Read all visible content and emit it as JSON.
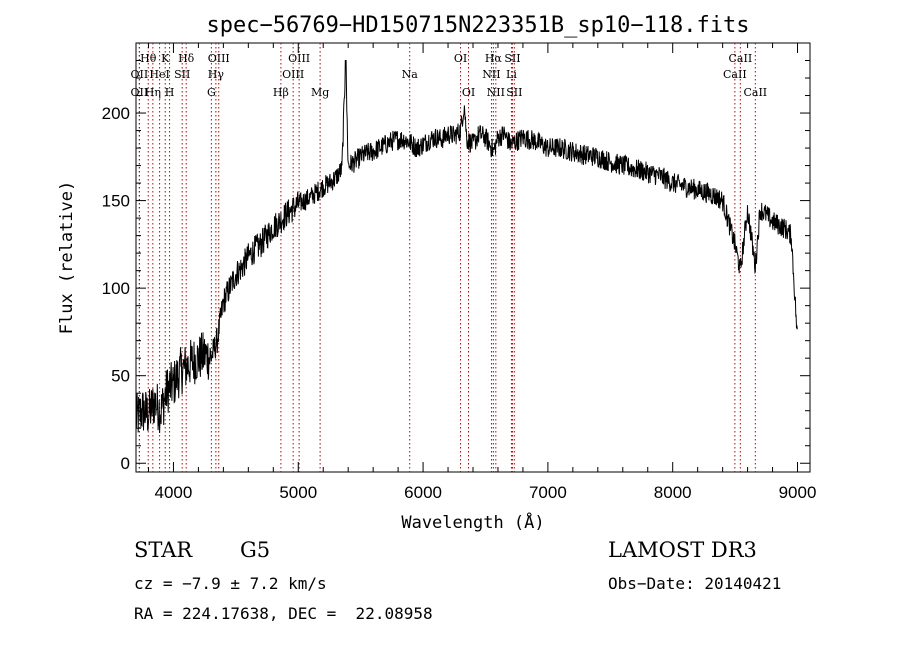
{
  "chart_data": {
    "type": "line",
    "title": "spec−56769−HD150715N223351B_sp10−118.fits",
    "xlabel": "Wavelength (Å)",
    "ylabel": "Flux (relative)",
    "xlim": [
      3700,
      9100
    ],
    "ylim": [
      -5,
      240
    ],
    "xticks": [
      4000,
      5000,
      6000,
      7000,
      8000,
      9000
    ],
    "yticks": [
      0,
      50,
      100,
      150,
      200
    ],
    "grid": false,
    "series": [
      {
        "values_x": [
          3700,
          3750,
          3800,
          3850,
          3900,
          3950,
          4000,
          4050,
          4100,
          4150,
          4200,
          4250,
          4300,
          4350,
          4400,
          4450,
          4500,
          4550,
          4600,
          4650,
          4700,
          4750,
          4800,
          4850,
          4900,
          4950,
          5000,
          5050,
          5100,
          5150,
          5200,
          5250,
          5300,
          5350,
          5380,
          5400,
          5450,
          5500,
          5550,
          5600,
          5650,
          5700,
          5750,
          5800,
          5850,
          5900,
          5950,
          6000,
          6050,
          6100,
          6150,
          6200,
          6250,
          6300,
          6330,
          6350,
          6400,
          6450,
          6500,
          6550,
          6565,
          6600,
          6650,
          6700,
          6750,
          6800,
          6850,
          6900,
          6950,
          7000,
          7100,
          7200,
          7300,
          7400,
          7500,
          7600,
          7700,
          7800,
          7900,
          8000,
          8100,
          8200,
          8300,
          8400,
          8498,
          8542,
          8600,
          8662,
          8700,
          8750,
          8800,
          8850,
          8900,
          8950,
          9000
        ],
        "values_y": [
          25,
          30,
          28,
          35,
          30,
          42,
          45,
          52,
          55,
          58,
          60,
          62,
          60,
          70,
          92,
          100,
          108,
          112,
          118,
          122,
          125,
          130,
          135,
          138,
          142,
          145,
          148,
          150,
          152,
          155,
          158,
          160,
          163,
          168,
          230,
          170,
          172,
          175,
          177,
          178,
          180,
          182,
          184,
          185,
          185,
          183,
          180,
          182,
          185,
          186,
          185,
          188,
          187,
          190,
          205,
          185,
          182,
          188,
          186,
          180,
          178,
          186,
          188,
          182,
          184,
          186,
          185,
          184,
          182,
          180,
          180,
          178,
          176,
          175,
          172,
          170,
          168,
          166,
          164,
          160,
          158,
          156,
          154,
          150,
          125,
          110,
          145,
          112,
          145,
          142,
          138,
          136,
          134,
          130,
          70
        ]
      }
    ],
    "lines": [
      {
        "label": "Hθ",
        "wl": 3798,
        "row": 0
      },
      {
        "label": "OII",
        "wl": 3727,
        "row": 1
      },
      {
        "label": "OII",
        "wl": 3727,
        "row": 2
      },
      {
        "label": "K",
        "wl": 3934,
        "row": 0
      },
      {
        "label": "H",
        "wl": 3969,
        "row": 2
      },
      {
        "label": "HeI",
        "wl": 3889,
        "row": 1
      },
      {
        "label": "Hη",
        "wl": 3835,
        "row": 2
      },
      {
        "label": "Hδ",
        "wl": 4102,
        "row": 0
      },
      {
        "label": "SII",
        "wl": 4070,
        "row": 1
      },
      {
        "label": "G",
        "wl": 4304,
        "row": 2
      },
      {
        "label": "OIII",
        "wl": 4363,
        "row": 0
      },
      {
        "label": "Hγ",
        "wl": 4340,
        "row": 1
      },
      {
        "label": "Hβ",
        "wl": 4861,
        "row": 2
      },
      {
        "label": "OIII",
        "wl": 5007,
        "row": 0
      },
      {
        "label": "OIII",
        "wl": 4959,
        "row": 1
      },
      {
        "label": "Mg",
        "wl": 5175,
        "row": 2
      },
      {
        "label": "Na",
        "wl": 5893,
        "row": 1
      },
      {
        "label": "OI",
        "wl": 6300,
        "row": 0
      },
      {
        "label": "OI",
        "wl": 6364,
        "row": 2
      },
      {
        "label": "Hα",
        "wl": 6563,
        "row": 0
      },
      {
        "label": "SII",
        "wl": 6716,
        "row": 0
      },
      {
        "label": "NII",
        "wl": 6548,
        "row": 1
      },
      {
        "label": "Li",
        "wl": 6708,
        "row": 1
      },
      {
        "label": "NII",
        "wl": 6583,
        "row": 2
      },
      {
        "label": "SII",
        "wl": 6731,
        "row": 2
      },
      {
        "label": "CaII",
        "wl": 8542,
        "row": 0
      },
      {
        "label": "CaII",
        "wl": 8498,
        "row": 1
      },
      {
        "label": "CaII",
        "wl": 8662,
        "row": 2
      }
    ]
  },
  "info": {
    "object": "STAR",
    "subclass": "G5",
    "survey": "LAMOST DR3",
    "redshift": "cz = −7.9 ± 7.2 km/s",
    "obs_date": "Obs−Date: 20140421",
    "coords": "RA = 224.17638, DEC =  22.08958"
  }
}
